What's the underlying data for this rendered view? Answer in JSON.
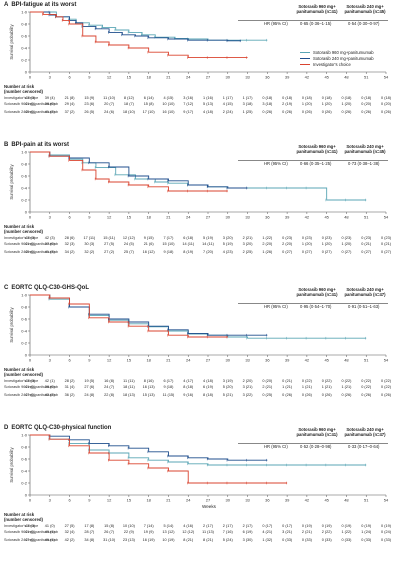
{
  "colors": {
    "sot960": "#5aa6b5",
    "sot240": "#1f4e8c",
    "inv": "#d9432f",
    "axis": "#555"
  },
  "legend": [
    "Sotorasib 960 mg+panitumumab",
    "Sotorasib 240 mg+panitumumab",
    "Investigator's choice"
  ],
  "hr_header": {
    "col1": "Sotorasib 960 mg+ panitumumab",
    "col2": "Sotorasib 240 mg+ panitumumab"
  },
  "x_ticks": [
    "0",
    "3",
    "6",
    "9",
    "12",
    "15",
    "18",
    "21",
    "24",
    "27",
    "30",
    "33",
    "36",
    "39",
    "42",
    "45",
    "48",
    "51",
    "54"
  ],
  "y_ticks": [
    "0",
    "0·2",
    "0·4",
    "0·6",
    "0·8",
    "1·0"
  ],
  "y_axis_label": "Survival probability",
  "x_axis_label": "Weeks",
  "risk_header": [
    "Number at risk",
    "(number censored)"
  ],
  "risk_names": [
    "Investigator's choice",
    "Sotorasib 960 mg-panitumumab",
    "Sotorasib 240 mg-panitumumab"
  ],
  "panels": [
    {
      "letter": "A",
      "title": "BPI-fatigue at its worst",
      "n_header": {
        "col1": "Sotorasib 960 mg+ panitumumab (n=41)",
        "col2": "Sotorasib 240 mg+ panitumumab (n=45)"
      },
      "hr_label": "HR (95% CI)",
      "hr1": "0·65 (0·36–1·15)",
      "hr2": "0·54 (0·30–0·97)",
      "risk": [
        [
          "43 (0)",
          "39 (4)",
          "21 (8)",
          "15 (9)",
          "11 (10)",
          "8 (12)",
          "6 (14)",
          "4 (15)",
          "3 (16)",
          "1 (16)",
          "1 (17)",
          "1 (17)",
          "0 (18)",
          "0 (18)",
          "0 (18)",
          "0 (18)",
          "0 (18)",
          "0 (18)",
          "0 (18)"
        ],
        [
          "41 (0)",
          "38 (0)",
          "29 (4)",
          "23 (6)",
          "20 (7)",
          "18 (7)",
          "15 (8)",
          "10 (10)",
          "7 (12)",
          "5 (13)",
          "4 (15)",
          "3 (18)",
          "3 (18)",
          "2 (19)",
          "1 (20)",
          "1 (20)",
          "1 (20)",
          "0 (20)",
          "0 (20)"
        ],
        [
          "45 (0)",
          "41 (2)",
          "37 (2)",
          "26 (5)",
          "24 (6)",
          "18 (10)",
          "17 (10)",
          "16 (10)",
          "9 (17)",
          "4 (18)",
          "2 (24)",
          "1 (25)",
          "0 (26)",
          "0 (26)",
          "0 (26)",
          "0 (26)",
          "0 (26)",
          "0 (26)",
          "0 (26)"
        ]
      ]
    },
    {
      "letter": "B",
      "title": "BPI-pain at its worst",
      "n_header": {
        "col1": "Sotorasib 960 mg+ panitumumab (n=41)",
        "col2": "Sotorasib 240 mg+ panitumumab (n=45)"
      },
      "hr_label": "HR (95% CI)",
      "hr1": "0·66 (0·35–1·25)",
      "hr2": "0·73 (0·38–1·38)",
      "risk": [
        [
          "43 (0)",
          "42 (3)",
          "28 (6)",
          "17 (11)",
          "15 (11)",
          "12 (12)",
          "9 (15)",
          "7 (17)",
          "6 (18)",
          "5 (19)",
          "3 (20)",
          "2 (21)",
          "1 (22)",
          "0 (23)",
          "0 (23)",
          "0 (23)",
          "0 (23)",
          "0 (23)",
          "0 (23)"
        ],
        [
          "41 (0)",
          "37 (0)",
          "32 (3)",
          "30 (3)",
          "27 (5)",
          "24 (5)",
          "21 (6)",
          "15 (10)",
          "14 (11)",
          "14 (11)",
          "5 (19)",
          "3 (20)",
          "2 (20)",
          "2 (20)",
          "1 (20)",
          "1 (20)",
          "1 (20)",
          "0 (21)",
          "0 (21)"
        ],
        [
          "45 (0)",
          "41 (3)",
          "34 (2)",
          "32 (2)",
          "27 (2)",
          "25 (7)",
          "16 (12)",
          "9 (18)",
          "8 (19)",
          "7 (20)",
          "4 (23)",
          "2 (25)",
          "1 (26)",
          "0 (27)",
          "0 (27)",
          "0 (27)",
          "0 (27)",
          "0 (27)",
          "0 (27)"
        ]
      ]
    },
    {
      "letter": "C",
      "title": "EORTC QLQ-C30-GHS-QoL",
      "n_header": {
        "col1": "Sotorasib 960 mg+ panitumumab (n=41)",
        "col2": "Sotorasib 240 mg+ panitumumab (n=47)"
      },
      "hr_label": "HR (95% CI)",
      "hr1": "0·95 (0·54–1·70)",
      "hr2": "0·91 (0·51–1·63)",
      "risk": [
        [
          "43 (0)",
          "42 (1)",
          "28 (2)",
          "19 (5)",
          "16 (8)",
          "11 (11)",
          "8 (16)",
          "6 (17)",
          "4 (17)",
          "4 (18)",
          "3 (19)",
          "2 (20)",
          "0 (20)",
          "0 (21)",
          "0 (22)",
          "0 (22)",
          "0 (22)",
          "0 (22)",
          "0 (22)"
        ],
        [
          "41 (0)",
          "38 (0)",
          "31 (4)",
          "27 (6)",
          "24 (7)",
          "18 (11)",
          "16 (13)",
          "9 (18)",
          "8 (18)",
          "6 (19)",
          "5 (20)",
          "3 (21)",
          "2 (21)",
          "1 (21)",
          "1 (21)",
          "1 (21)",
          "1 (21)",
          "0 (22)",
          "0 (22)"
        ],
        [
          "47 (0)",
          "42 (2)",
          "36 (2)",
          "24 (8)",
          "22 (8)",
          "18 (13)",
          "15 (13)",
          "11 (15)",
          "9 (16)",
          "8 (18)",
          "5 (21)",
          "3 (22)",
          "0 (25)",
          "0 (26)",
          "0 (26)",
          "0 (26)",
          "0 (26)",
          "0 (26)",
          "0 (26)"
        ]
      ]
    },
    {
      "letter": "D",
      "title": "EORTC QLQ-C30-physical function",
      "n_header": {
        "col1": "Sotorasib 960 mg+ panitumumab (n=41)",
        "col2": "Sotorasib 240 mg+ panitumumab (n=47)"
      },
      "hr_label": "HR (95% CI)",
      "hr1": "0·52 (0·28–0·98)",
      "hr2": "0·33 (0·17–0·64)",
      "risk": [
        [
          "43 (0)",
          "41 (0)",
          "27 (5)",
          "17 (8)",
          "15 (8)",
          "10 (10)",
          "7 (14)",
          "5 (14)",
          "4 (16)",
          "2 (17)",
          "2 (17)",
          "2 (17)",
          "0 (17)",
          "0 (17)",
          "0 (19)",
          "0 (19)",
          "0 (19)",
          "0 (19)",
          "0 (19)"
        ],
        [
          "41 (0)",
          "40 (1)",
          "32 (4)",
          "28 (7)",
          "26 (7)",
          "22 (9)",
          "19 (9)",
          "13 (12)",
          "12 (12)",
          "11 (13)",
          "7 (16)",
          "6 (19)",
          "4 (21)",
          "3 (21)",
          "2 (21)",
          "2 (22)",
          "1 (22)",
          "1 (24)",
          "0 (24)"
        ],
        [
          "47 (0)",
          "46 (1)",
          "42 (2)",
          "34 (8)",
          "31 (10)",
          "23 (13)",
          "16 (19)",
          "10 (19)",
          "8 (21)",
          "8 (21)",
          "5 (24)",
          "3 (30)",
          "1 (32)",
          "0 (33)",
          "0 (33)",
          "0 (33)",
          "0 (33)",
          "0 (33)",
          "0 (33)"
        ]
      ]
    }
  ],
  "chart_data": [
    {
      "panel": "A",
      "type": "line",
      "title": "BPI-fatigue at its worst",
      "xlabel": "Weeks",
      "ylabel": "Survival probability",
      "xlim": [
        0,
        54
      ],
      "ylim": [
        0,
        1
      ],
      "series": [
        {
          "name": "Sotorasib 960 mg+panitumumab",
          "x": [
            0,
            3,
            4,
            6,
            7,
            9,
            11,
            13,
            15,
            17,
            19,
            22,
            24,
            27,
            30,
            33,
            36
          ],
          "y": [
            1,
            1,
            0.92,
            0.88,
            0.82,
            0.78,
            0.74,
            0.7,
            0.66,
            0.62,
            0.58,
            0.56,
            0.55,
            0.53,
            0.53,
            0.53,
            0.53
          ]
        },
        {
          "name": "Sotorasib 240 mg+panitumumab",
          "x": [
            0,
            3,
            4,
            6,
            7,
            8,
            10,
            12,
            14,
            16,
            18,
            21,
            24,
            27,
            30,
            32
          ],
          "y": [
            1,
            0.95,
            0.92,
            0.86,
            0.82,
            0.76,
            0.72,
            0.66,
            0.62,
            0.6,
            0.57,
            0.55,
            0.53,
            0.53,
            0.52,
            0.52
          ]
        },
        {
          "name": "Investigator's choice",
          "x": [
            0,
            2,
            4,
            5,
            6,
            8,
            10,
            12,
            15,
            18,
            21,
            24,
            27,
            30,
            33
          ],
          "y": [
            1,
            0.96,
            0.92,
            0.86,
            0.8,
            0.6,
            0.5,
            0.45,
            0.4,
            0.33,
            0.28,
            0.24,
            0.24,
            0.24,
            0.24
          ]
        }
      ]
    },
    {
      "panel": "B",
      "type": "line",
      "title": "BPI-pain at its worst",
      "xlabel": "Weeks",
      "ylabel": "Survival probability",
      "xlim": [
        0,
        54
      ],
      "ylim": [
        0,
        1
      ],
      "series": [
        {
          "name": "Sotorasib 960 mg+panitumumab",
          "x": [
            0,
            3,
            6,
            8,
            10,
            13,
            16,
            19,
            21,
            24,
            27,
            30,
            33,
            36,
            39,
            42,
            45,
            48,
            51
          ],
          "y": [
            1,
            0.95,
            0.88,
            0.82,
            0.74,
            0.62,
            0.55,
            0.5,
            0.48,
            0.45,
            0.42,
            0.4,
            0.4,
            0.4,
            0.4,
            0.4,
            0.2,
            0.2,
            0.2
          ]
        },
        {
          "name": "Sotorasib 240 mg+panitumumab",
          "x": [
            0,
            3,
            6,
            9,
            12,
            15,
            18,
            21,
            24,
            27,
            30,
            33
          ],
          "y": [
            1,
            0.93,
            0.9,
            0.82,
            0.75,
            0.6,
            0.55,
            0.52,
            0.45,
            0.42,
            0.4,
            0.4
          ]
        },
        {
          "name": "Investigator's choice",
          "x": [
            0,
            3,
            6,
            8,
            10,
            12,
            15,
            18,
            21,
            24,
            27,
            30
          ],
          "y": [
            1,
            0.93,
            0.86,
            0.7,
            0.55,
            0.5,
            0.45,
            0.42,
            0.35,
            0.35,
            0.35,
            0.35
          ]
        }
      ]
    },
    {
      "panel": "C",
      "type": "line",
      "title": "EORTC QLQ-C30-GHS-QoL",
      "xlabel": "Weeks",
      "ylabel": "Survival probability",
      "xlim": [
        0,
        54
      ],
      "ylim": [
        0,
        1
      ],
      "series": [
        {
          "name": "Sotorasib 960 mg+panitumumab",
          "x": [
            0,
            3,
            6,
            9,
            12,
            15,
            18,
            21,
            24,
            27,
            30,
            33,
            36,
            39,
            42,
            45,
            48,
            51
          ],
          "y": [
            1,
            0.93,
            0.8,
            0.66,
            0.58,
            0.52,
            0.47,
            0.4,
            0.35,
            0.33,
            0.3,
            0.28,
            0.28,
            0.28,
            0.28,
            0.28,
            0.28,
            0.28
          ]
        },
        {
          "name": "Sotorasib 240 mg+panitumumab",
          "x": [
            0,
            3,
            6,
            9,
            12,
            15,
            18,
            21,
            24,
            27,
            30,
            33,
            36
          ],
          "y": [
            1,
            0.95,
            0.8,
            0.68,
            0.6,
            0.55,
            0.48,
            0.42,
            0.36,
            0.33,
            0.33,
            0.33,
            0.33
          ]
        },
        {
          "name": "Investigator's choice",
          "x": [
            0,
            3,
            6,
            9,
            12,
            15,
            18,
            21,
            24,
            27,
            30
          ],
          "y": [
            1,
            0.95,
            0.85,
            0.62,
            0.55,
            0.48,
            0.4,
            0.33,
            0.3,
            0.3,
            0.3
          ]
        }
      ]
    },
    {
      "panel": "D",
      "type": "line",
      "title": "EORTC QLQ-C30-physical function",
      "xlabel": "Weeks",
      "ylabel": "Survival probability",
      "xlim": [
        0,
        54
      ],
      "ylim": [
        0,
        1
      ],
      "series": [
        {
          "name": "Sotorasib 960 mg+panitumumab",
          "x": [
            0,
            3,
            6,
            9,
            12,
            15,
            18,
            21,
            24,
            27,
            30,
            33,
            36,
            39,
            42,
            45,
            48,
            51
          ],
          "y": [
            1,
            0.93,
            0.86,
            0.75,
            0.7,
            0.62,
            0.58,
            0.55,
            0.52,
            0.5,
            0.5,
            0.5,
            0.5,
            0.5,
            0.5,
            0.5,
            0.5,
            0.5
          ]
        },
        {
          "name": "Sotorasib 240 mg+panitumumab",
          "x": [
            0,
            3,
            6,
            9,
            12,
            15,
            18,
            21,
            24,
            27,
            30,
            33,
            36
          ],
          "y": [
            1,
            0.98,
            0.92,
            0.86,
            0.82,
            0.78,
            0.72,
            0.65,
            0.62,
            0.6,
            0.58,
            0.58,
            0.58
          ]
        },
        {
          "name": "Investigator's choice",
          "x": [
            0,
            3,
            6,
            9,
            12,
            15,
            18,
            21,
            24,
            27,
            30,
            33,
            36,
            39
          ],
          "y": [
            1,
            0.93,
            0.82,
            0.7,
            0.58,
            0.52,
            0.45,
            0.4,
            0.2,
            0.2,
            0.2,
            0.2,
            0.2,
            0.2
          ]
        }
      ]
    }
  ]
}
